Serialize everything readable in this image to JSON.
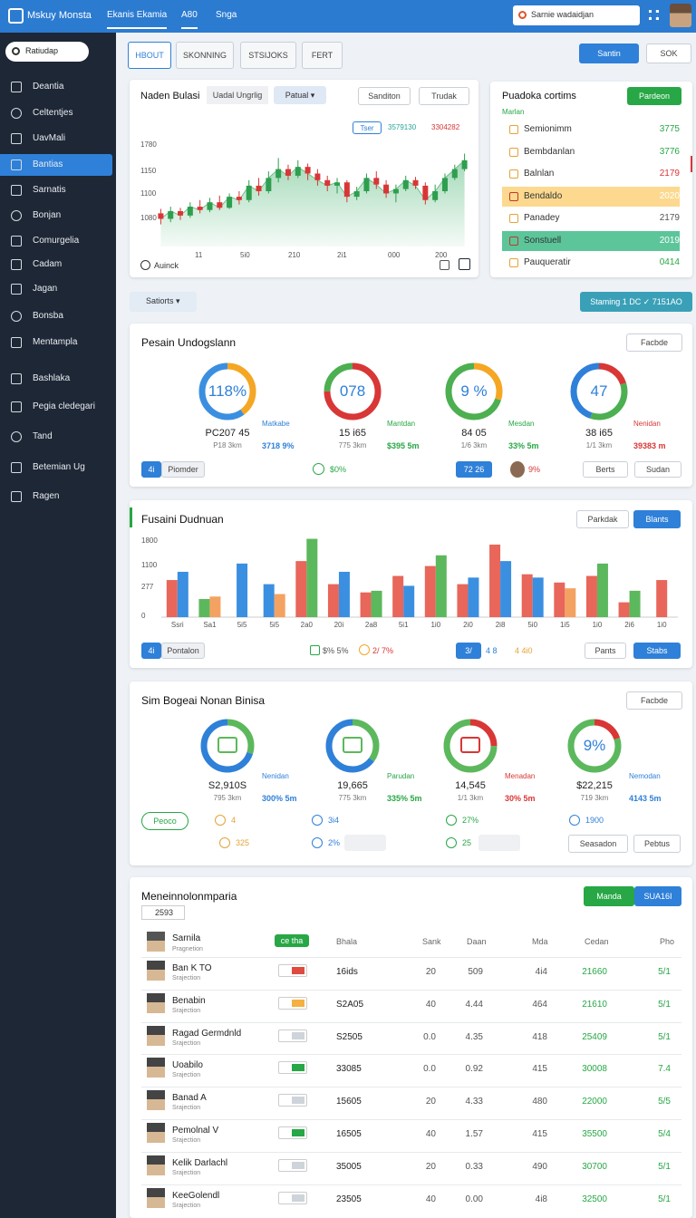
{
  "topbar": {
    "logo": "Mskuy Monsta",
    "nav": [
      "Ekanis Ekamia",
      "A80",
      "Snga"
    ],
    "search": "Sarnie wadaidjan"
  },
  "sidebar": {
    "search": "Ratiudap",
    "active": 3,
    "menu": [
      "Deantia",
      "Celtentjes",
      "UavMali",
      "Bantias",
      "Sarnatis",
      "Bonjan",
      "Comurgelia",
      "Cadam",
      "Jagan",
      "Bonsba",
      "Mentampla",
      "Bashlaka",
      "Pegia cledegari",
      "Tand",
      "Betemian Ug",
      "Ragen"
    ]
  },
  "tabs": {
    "items": [
      "HBOUT",
      "SKONNING",
      "STSIJOKS",
      "FERT"
    ],
    "active": 0,
    "buttons": [
      "Santin",
      "SOK"
    ]
  },
  "price_card": {
    "title": "Naden Bulasi",
    "tabs": [
      "Uadal Ungrlig",
      "Patual ▾"
    ],
    "buttons": [
      "Sanditon",
      "Trudak"
    ],
    "chips": [
      "Tser",
      "3579130",
      "3304282"
    ],
    "y_labels": [
      "1780",
      "1150",
      "1100",
      "1080"
    ],
    "x_labels": [
      "11",
      "5i0",
      "210",
      "2i1",
      "000",
      "200"
    ],
    "footer": "Auinck",
    "ylim": [
      0,
      100
    ],
    "up_color": "#2e9e4f",
    "down_color": "#d93636",
    "area_color": "#8fd1a8",
    "candles": [
      [
        30,
        25,
        34,
        20
      ],
      [
        25,
        32,
        36,
        22
      ],
      [
        32,
        28,
        35,
        24
      ],
      [
        28,
        36,
        40,
        26
      ],
      [
        36,
        33,
        42,
        30
      ],
      [
        33,
        40,
        44,
        31
      ],
      [
        40,
        35,
        46,
        33
      ],
      [
        35,
        45,
        48,
        34
      ],
      [
        45,
        42,
        50,
        38
      ],
      [
        42,
        55,
        60,
        40
      ],
      [
        55,
        50,
        62,
        46
      ],
      [
        50,
        62,
        68,
        48
      ],
      [
        62,
        70,
        80,
        58
      ],
      [
        70,
        64,
        74,
        60
      ],
      [
        64,
        72,
        78,
        62
      ],
      [
        72,
        66,
        75,
        60
      ],
      [
        66,
        60,
        70,
        55
      ],
      [
        60,
        55,
        64,
        50
      ],
      [
        55,
        58,
        62,
        48
      ],
      [
        58,
        45,
        60,
        40
      ],
      [
        45,
        50,
        54,
        42
      ],
      [
        50,
        62,
        66,
        48
      ],
      [
        62,
        56,
        68,
        52
      ],
      [
        56,
        48,
        60,
        44
      ],
      [
        48,
        52,
        56,
        40
      ],
      [
        52,
        60,
        64,
        50
      ],
      [
        60,
        55,
        63,
        52
      ],
      [
        55,
        42,
        58,
        38
      ],
      [
        42,
        50,
        56,
        40
      ],
      [
        50,
        62,
        66,
        48
      ],
      [
        62,
        70,
        74,
        60
      ],
      [
        70,
        78,
        84,
        68
      ]
    ]
  },
  "list_card": {
    "title": "Puadoka cortims",
    "button": "Pardeon",
    "subtitle": "Marlan",
    "rows": [
      {
        "label": "Semionimm",
        "value": "3775",
        "color": "#27a745",
        "highlight": null
      },
      {
        "label": "Bembdanlan",
        "value": "3776",
        "color": "#27a745",
        "highlight": null
      },
      {
        "label": "Balnlan",
        "value": "2179",
        "color": "#d93636",
        "highlight": null
      },
      {
        "label": "Bendaldo",
        "value": "2020",
        "color": "#ffffff",
        "highlight": "#fcd98f"
      },
      {
        "label": "Panadey",
        "value": "2179",
        "color": "#555555",
        "highlight": null
      },
      {
        "label": "Sonstuell",
        "value": "2019",
        "color": "#ffffff",
        "highlight": "#5cc59a"
      },
      {
        "label": "Pauqueratir",
        "value": "0414",
        "color": "#27a745",
        "highlight": null
      }
    ]
  },
  "filter": {
    "label": "Satiorts ▾",
    "action": "Staming 1 DC ✓ 7151AO"
  },
  "gauge_card": {
    "title": "Pesain Undogslann",
    "button": "Facbde",
    "gauges": [
      {
        "center": "118%",
        "value": "PC207 45",
        "sub": "P18 3km",
        "side_label": "Matkabe",
        "side_value": "3718 9%",
        "side_color": "#2f80d8",
        "segments": [
          {
            "value": 40,
            "color": "#f5a623"
          },
          {
            "value": 60,
            "color": "#3b8fe0"
          }
        ]
      },
      {
        "center": "078",
        "value": "15 i65",
        "sub": "775 3km",
        "side_label": "Mantdan",
        "side_value": "$395 5m",
        "side_color": "#27a745",
        "segments": [
          {
            "value": 75,
            "color": "#d93636"
          },
          {
            "value": 25,
            "color": "#4caf50"
          }
        ]
      },
      {
        "center": "9 %",
        "value": "84 05",
        "sub": "1/6 3km",
        "side_label": "Mesdan",
        "side_value": "33% 5m",
        "side_color": "#27a745",
        "segments": [
          {
            "value": 30,
            "color": "#f5a623"
          },
          {
            "value": 70,
            "color": "#4caf50"
          }
        ]
      },
      {
        "center": "47",
        "value": "38 i65",
        "sub": "1/1 3km",
        "side_label": "Nenidan",
        "side_value": "39383 m",
        "side_color": "#d93636",
        "segments": [
          {
            "value": 20,
            "color": "#d93636"
          },
          {
            "value": 35,
            "color": "#4caf50"
          },
          {
            "value": 45,
            "color": "#2f80d8"
          }
        ]
      }
    ],
    "footer": [
      "4i",
      "Piomder",
      "$0%",
      "72 26",
      "9%",
      "Berts",
      "Sudan"
    ]
  },
  "bar_card": {
    "title": "Fusaini Dudnuan",
    "buttons": [
      "Parkdak",
      "Blants"
    ],
    "y_labels": [
      "1800",
      "1100",
      "277",
      "0"
    ],
    "ylim": [
      0,
      100
    ],
    "categories": [
      "Ssri",
      "Sa1",
      "5i5",
      "5i5",
      "2a0",
      "20i",
      "2a8",
      "5i1",
      "1i0",
      "2i0",
      "2i8",
      "5i0",
      "1i5",
      "1i0",
      "2i6",
      "1i0"
    ],
    "series": [
      {
        "color": "#e8665a",
        "values": [
          45,
          null,
          null,
          null,
          68,
          40,
          30,
          50,
          62,
          40,
          88,
          52,
          42,
          50,
          18,
          45
        ]
      },
      {
        "color": "#3b8fe0",
        "values": [
          55,
          null,
          65,
          40,
          null,
          55,
          null,
          38,
          null,
          48,
          68,
          48,
          null,
          null,
          null,
          null
        ]
      },
      {
        "color": "#5cb85c",
        "values": [
          null,
          22,
          null,
          null,
          95,
          null,
          32,
          null,
          75,
          null,
          null,
          null,
          null,
          65,
          32,
          null
        ]
      },
      {
        "color": "#f4a261",
        "values": [
          null,
          25,
          null,
          28,
          null,
          null,
          null,
          null,
          null,
          null,
          null,
          null,
          35,
          null,
          null,
          null
        ]
      }
    ],
    "footer": [
      "4i",
      "Pontalon",
      "$% 5%",
      "2/ 7%",
      "3/",
      "4 8",
      "4 4i0",
      "Pants",
      "Stabs"
    ]
  },
  "icon_card": {
    "title": "Sim Bogeai Nonan Binisa",
    "button": "Facbde",
    "gauges": [
      {
        "value": "S2,910S",
        "sub": "795 3km",
        "side_label": "Nenidan",
        "side_value": "300% 5m",
        "side_color": "#2f80d8",
        "segments": [
          {
            "value": 30,
            "color": "#5cb85c"
          },
          {
            "value": 70,
            "color": "#2f80d8"
          }
        ]
      },
      {
        "value": "19,665",
        "sub": "775 3km",
        "side_label": "Parudan",
        "side_value": "335% 5m",
        "side_color": "#27a745",
        "segments": [
          {
            "value": 35,
            "color": "#5cb85c"
          },
          {
            "value": 65,
            "color": "#2f80d8"
          }
        ]
      },
      {
        "value": "14,545",
        "sub": "1/1 3km",
        "side_label": "Menadan",
        "side_value": "30% 5m",
        "side_color": "#d93636",
        "segments": [
          {
            "value": 25,
            "color": "#d93636"
          },
          {
            "value": 75,
            "color": "#5cb85c"
          }
        ]
      },
      {
        "center": "9%",
        "value": "$22,215",
        "sub": "719 3km",
        "side_label": "Nemodan",
        "side_value": "4143 5m",
        "side_color": "#2f80d8",
        "segments": [
          {
            "value": 20,
            "color": "#d93636"
          },
          {
            "value": 80,
            "color": "#5cb85c"
          }
        ]
      }
    ],
    "footer": [
      "Peoco",
      "4",
      "325",
      "3i4",
      "2%",
      "27%",
      "25",
      "1900",
      "Seasadon",
      "Pebtus"
    ]
  },
  "table": {
    "title": "Meneinnolonmparia",
    "count": "2593",
    "buttons": [
      "Manda",
      "SUA16I"
    ],
    "header": [
      "Sarnila",
      "ce tha",
      "Bhala",
      "Sank",
      "Daan",
      "Mda",
      "Cedan",
      "Pho"
    ],
    "header_sub": "Pragnetion",
    "rows": [
      {
        "name": "Ban K TO",
        "sub": "Srajection",
        "status_color": "#e04b3f",
        "cells": [
          "16ids",
          "20",
          "509",
          "4i4",
          "21660",
          "5/1"
        ]
      },
      {
        "name": "Benabin",
        "sub": "Srajection",
        "status_color": "#f5b041",
        "cells": [
          "S2A05",
          "40",
          "4.44",
          "464",
          "21610",
          "5/1"
        ]
      },
      {
        "name": "Ragad Germdnld",
        "sub": "Srajection",
        "status_color": "#cfd4da",
        "cells": [
          "S2505",
          "0.0",
          "4.35",
          "418",
          "25409",
          "5/1"
        ]
      },
      {
        "name": "Uoabilo",
        "sub": "Srajection",
        "status_color": "#27a745",
        "cells": [
          "33085",
          "0.0",
          "0.92",
          "415",
          "30008",
          "7.4"
        ]
      },
      {
        "name": "Banad A",
        "sub": "Srajection",
        "status_color": "#cfd4da",
        "cells": [
          "15605",
          "20",
          "4.33",
          "480",
          "22000",
          "5/5"
        ]
      },
      {
        "name": "Pemolnal V",
        "sub": "Srajection",
        "status_color": "#27a745",
        "cells": [
          "16505",
          "40",
          "1.57",
          "415",
          "35500",
          "5/4"
        ]
      },
      {
        "name": "Kelik Darlachl",
        "sub": "Srajection",
        "status_color": "#cfd4da",
        "cells": [
          "35005",
          "20",
          "0.33",
          "490",
          "30700",
          "5/1"
        ]
      },
      {
        "name": "KeeGolendl",
        "sub": "Srajection",
        "status_color": "#cfd4da",
        "cells": [
          "23505",
          "40",
          "0.00",
          "4i8",
          "32500",
          "5/1"
        ]
      }
    ]
  }
}
